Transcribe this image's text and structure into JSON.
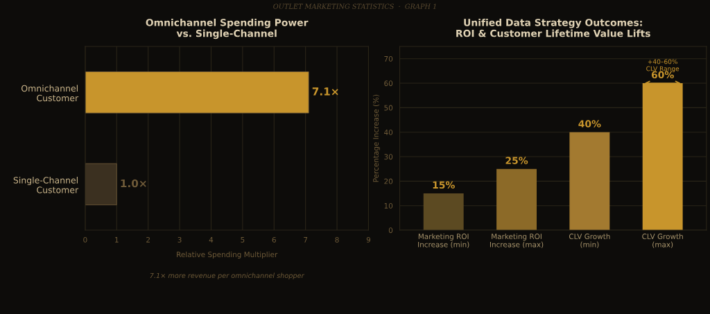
{
  "chart_data": [
    {
      "type": "bar",
      "orientation": "horizontal",
      "title": "Omnichannel Spending Power\nvs. Single-Channel",
      "xlabel": "Relative Spending Multiplier",
      "categories": [
        "Omnichannel\nCustomer",
        "Single-Channel\nCustomer"
      ],
      "values": [
        7.1,
        1.0
      ],
      "colors": [
        "#c8952c",
        "#3b3020"
      ],
      "value_labels": [
        "7.1×",
        "1.0×"
      ],
      "xlim": [
        0,
        9
      ],
      "xticks": [
        0,
        1,
        2,
        3,
        4,
        5,
        6,
        7,
        8,
        9
      ],
      "grid": "x",
      "annotations": [
        "OUTLET MARKETING STATISTICS  ·  GRAPH 1",
        "7.1× more revenue per omnichannel shopper"
      ]
    },
    {
      "type": "bar",
      "title": "Unified Data Strategy Outcomes:\nROI & Customer Lifetime Value Lifts",
      "ylabel": "Percentage Increase (%)",
      "categories": [
        "Marketing ROI\nIncrease (min)",
        "Marketing ROI\nIncrease (max)",
        "CLV Growth\n(min)",
        "CLV Growth\n(max)"
      ],
      "values": [
        15,
        25,
        40,
        60
      ],
      "colors": [
        "#5c4a22",
        "#8c6a28",
        "#a37a30",
        "#c8952c"
      ],
      "value_labels": [
        "15%",
        "25%",
        "40%",
        "60%"
      ],
      "ylim": [
        0,
        75
      ],
      "yticks": [
        0,
        10,
        20,
        30,
        40,
        50,
        60,
        70
      ],
      "grid": "y",
      "annotations": [
        {
          "text": "+40–60%\nCLV Range",
          "x": "CLV Growth\n(max)",
          "y": 60
        }
      ]
    }
  ]
}
